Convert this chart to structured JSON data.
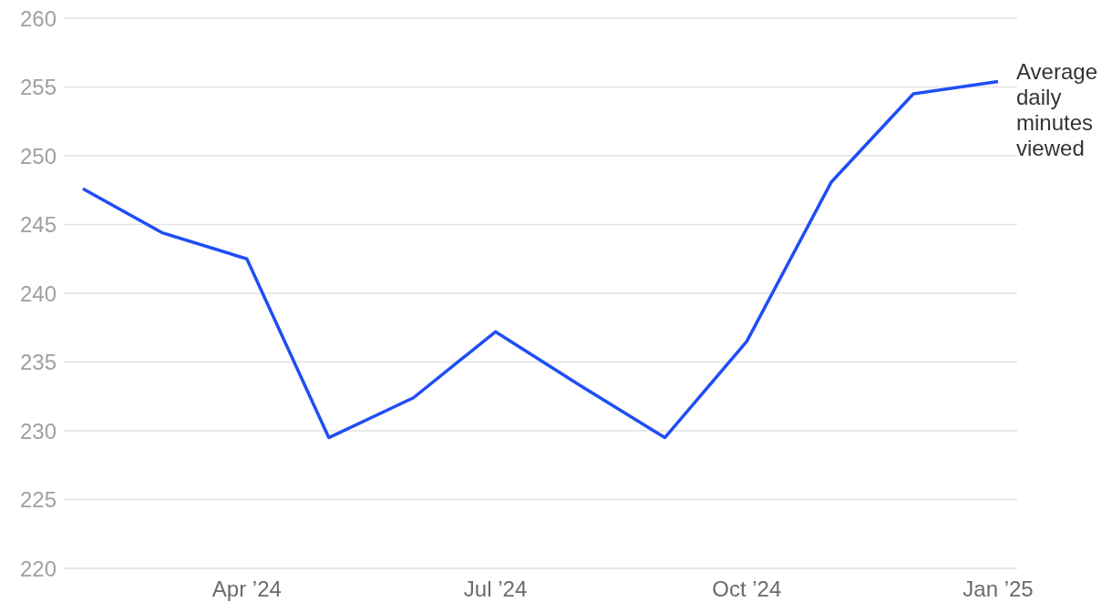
{
  "chart_data": {
    "type": "line",
    "x": [
      "2024-02",
      "2024-03",
      "2024-04",
      "2024-05",
      "2024-06",
      "2024-07",
      "2024-08",
      "2024-09",
      "2024-10",
      "2024-11",
      "2024-12",
      "2025-01"
    ],
    "series": [
      {
        "name": "Average daily minutes viewed",
        "color": "#1f4ef5",
        "values": [
          247.6,
          244.4,
          242.5,
          229.5,
          232.4,
          237.2,
          233.3,
          229.5,
          236.5,
          248.1,
          254.5,
          255.4
        ]
      }
    ],
    "xlim": [
      "2024-01-25",
      "2025-01-08"
    ],
    "xticks": [
      {
        "value": "2024-04",
        "label": "Apr ’24"
      },
      {
        "value": "2024-07",
        "label": "Jul ’24"
      },
      {
        "value": "2024-10",
        "label": "Oct ’24"
      },
      {
        "value": "2025-01",
        "label": "Jan ’25"
      }
    ],
    "ylim": [
      220,
      260
    ],
    "yticks": [
      220,
      225,
      230,
      235,
      240,
      245,
      250,
      255,
      260
    ],
    "grid": "y",
    "legend": false,
    "marker": "none",
    "line_style": "solid"
  }
}
